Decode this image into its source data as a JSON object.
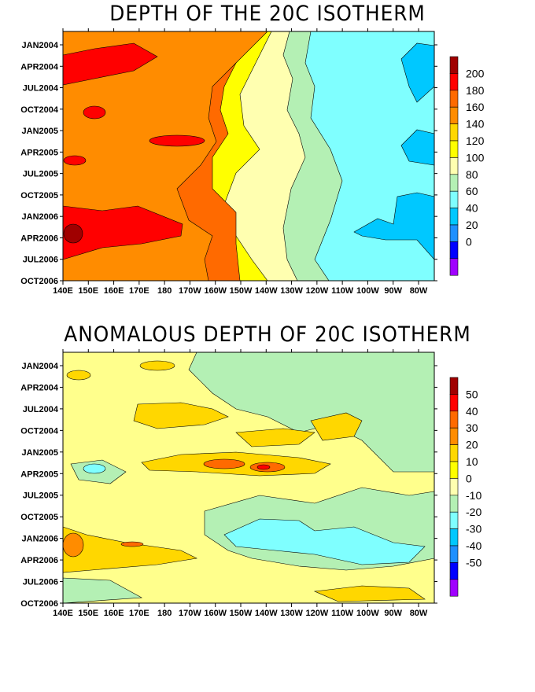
{
  "chart_data": [
    {
      "type": "heatmap",
      "title": "DEPTH OF THE 20C ISOTHERM",
      "xlabel": "",
      "ylabel": "",
      "x_ticks": [
        "140E",
        "150E",
        "160E",
        "170E",
        "180",
        "170W",
        "160W",
        "150W",
        "140W",
        "130W",
        "120W",
        "110W",
        "100W",
        "90W",
        "80W"
      ],
      "y_ticks": [
        "JAN2004",
        "APR2004",
        "JUL2004",
        "OCT2004",
        "JAN2005",
        "APR2005",
        "JUL2005",
        "OCT2005",
        "JAN2006",
        "APR2006",
        "JUL2006",
        "OCT2006"
      ],
      "colorbar_levels": [
        "200",
        "180",
        "160",
        "140",
        "120",
        "100",
        "80",
        "60",
        "40",
        "20",
        "0"
      ],
      "colorbar_colors": [
        "#a00000",
        "#ff0000",
        "#ff6a00",
        "#ff8c00",
        "#ffd700",
        "#ffff00",
        "#ffffb0",
        "#b4f0b4",
        "#7fffff",
        "#00c8ff",
        "#1e90ff",
        "#0000ff",
        "#a000ff"
      ],
      "bands": [
        {
          "label": "140",
          "lon_start": 140,
          "lon_end": 185
        },
        {
          "label": "120",
          "lon_start": 185,
          "lon_end": 215
        },
        {
          "label": "100",
          "lon_start": 215,
          "lon_end": 228
        },
        {
          "label": "80",
          "lon_start": 228,
          "lon_end": 236
        },
        {
          "label": "60",
          "lon_start": 236,
          "lon_end": 263
        }
      ]
    },
    {
      "type": "heatmap",
      "title": "ANOMALOUS DEPTH OF 20C ISOTHERM",
      "xlabel": "",
      "ylabel": "",
      "x_ticks": [
        "140E",
        "150E",
        "160E",
        "170E",
        "180",
        "170W",
        "160W",
        "150W",
        "140W",
        "130W",
        "120W",
        "110W",
        "100W",
        "90W",
        "80W"
      ],
      "y_ticks": [
        "JAN2004",
        "APR2004",
        "JUL2004",
        "OCT2004",
        "JAN2005",
        "APR2005",
        "JUL2005",
        "OCT2005",
        "JAN2006",
        "APR2006",
        "JUL2006",
        "OCT2006"
      ],
      "colorbar_levels": [
        "50",
        "40",
        "30",
        "20",
        "10",
        "0",
        "-10",
        "-20",
        "-30",
        "-40",
        "-50"
      ],
      "colorbar_colors": [
        "#a00000",
        "#ff0000",
        "#ff6a00",
        "#ff8c00",
        "#ffd700",
        "#ffff00",
        "#ffffb0",
        "#b4f0b4",
        "#7fffff",
        "#00c8ff",
        "#1e90ff",
        "#0000ff",
        "#a000ff"
      ]
    }
  ]
}
